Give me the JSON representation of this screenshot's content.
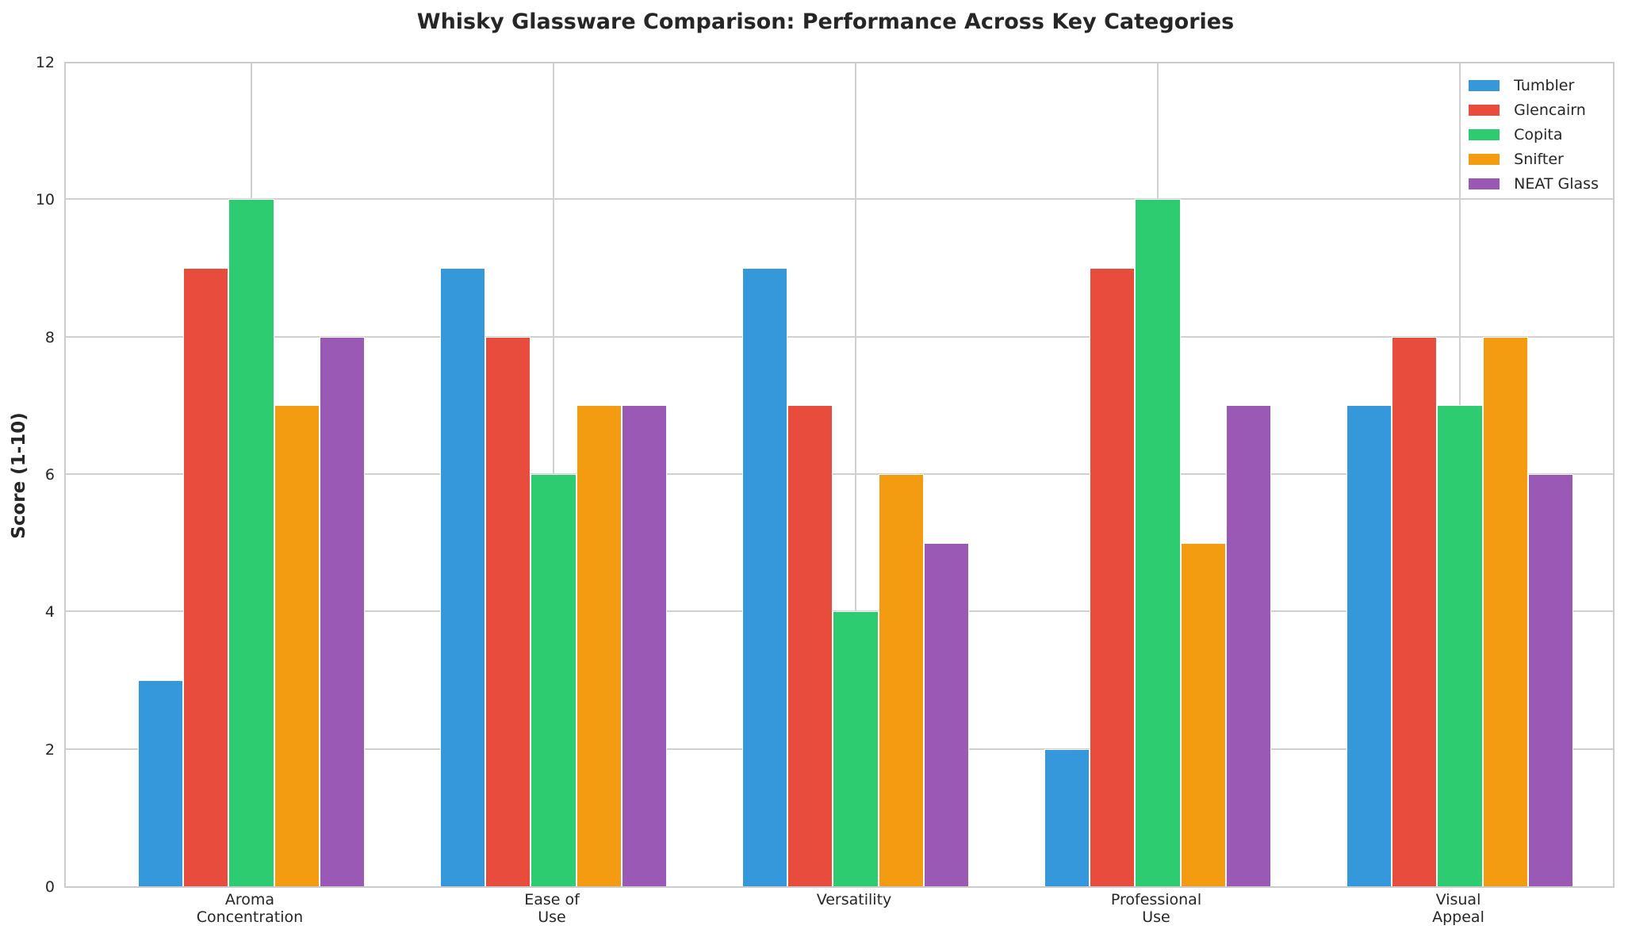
{
  "chart_data": {
    "type": "bar",
    "title": "Whisky Glassware Comparison: Performance Across Key Categories",
    "xlabel": "",
    "ylabel": "Score (1-10)",
    "ylim": [
      0,
      12
    ],
    "yticks": [
      0,
      2,
      4,
      6,
      8,
      10,
      12
    ],
    "grid": true,
    "legend_position": "upper right",
    "categories": [
      "Aroma\nConcentration",
      "Ease of\nUse",
      "Versatility",
      "Professional\nUse",
      "Visual\nAppeal"
    ],
    "series": [
      {
        "name": "Tumbler",
        "color": "#3498db",
        "values": [
          3,
          9,
          9,
          2,
          7
        ]
      },
      {
        "name": "Glencairn",
        "color": "#e74c3c",
        "values": [
          9,
          8,
          7,
          9,
          8
        ]
      },
      {
        "name": "Copita",
        "color": "#2ecc71",
        "values": [
          10,
          6,
          4,
          10,
          7
        ]
      },
      {
        "name": "Snifter",
        "color": "#f39c12",
        "values": [
          7,
          7,
          6,
          5,
          8
        ]
      },
      {
        "name": "NEAT Glass",
        "color": "#9b59b6",
        "values": [
          8,
          7,
          5,
          7,
          6
        ]
      }
    ]
  }
}
